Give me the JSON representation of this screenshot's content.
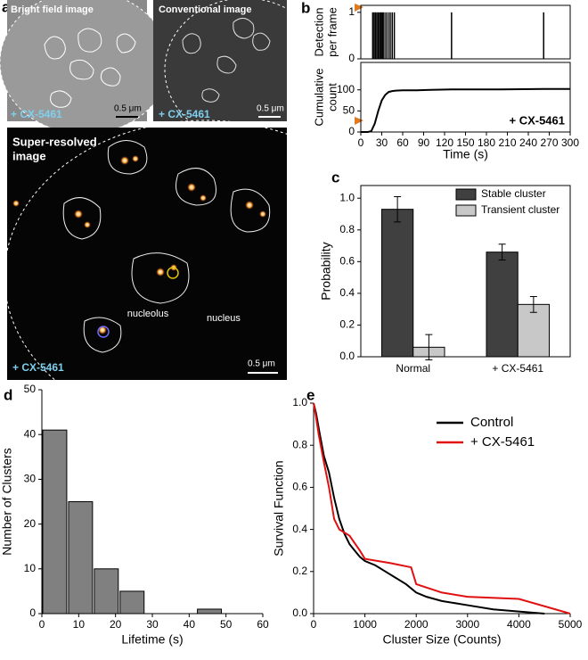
{
  "images": {
    "panel": "a",
    "bright": "Bright field image",
    "conventional": "Conventional image",
    "super": [
      "Super-resolved",
      "image"
    ],
    "treatment": [
      "+ CX-5461",
      "+ CX-5461",
      "+ CX-5461"
    ],
    "scale": [
      "0.5 μm",
      "0.5 μm",
      "0.5 μm"
    ],
    "nucleolus": "nucleolus",
    "nucleus": "nucleus"
  },
  "chart_data": [
    {
      "type": "event",
      "panel": "b",
      "ylabel": [
        "Detection",
        "per frame"
      ],
      "x": [
        17,
        19,
        21,
        23,
        25,
        27,
        29,
        31,
        33,
        36,
        39,
        42,
        45,
        48,
        130,
        262
      ],
      "values": [
        1,
        1,
        1,
        1,
        1,
        1,
        1,
        1,
        1,
        1,
        1,
        1,
        1,
        1,
        1,
        1
      ],
      "color": "#000000",
      "xlim": [
        0,
        300
      ],
      "ylim": [
        0,
        1.15
      ],
      "yticks": [
        0,
        1
      ]
    },
    {
      "type": "line",
      "ylabel": [
        "Cumulative",
        "count"
      ],
      "xlabel": "Time (s)",
      "annotation": "+ CX-5461",
      "x": [
        0,
        10,
        15,
        20,
        25,
        30,
        35,
        40,
        45,
        50,
        60,
        80,
        100,
        130,
        150,
        200,
        262,
        300
      ],
      "values": [
        0,
        0,
        2,
        20,
        50,
        75,
        88,
        95,
        97,
        98,
        99,
        99,
        100,
        101,
        101,
        101,
        102,
        102
      ],
      "color": "#000000",
      "xlim": [
        0,
        300
      ],
      "xticks": [
        0,
        30,
        60,
        90,
        120,
        150,
        180,
        210,
        240,
        270,
        300
      ],
      "ylim": [
        0,
        165
      ],
      "yticks": [
        0,
        50,
        100
      ]
    },
    {
      "type": "bar",
      "panel": "c",
      "ylabel": "Probability",
      "categories": [
        "Normal",
        "+ CX-5461"
      ],
      "series": [
        {
          "name": "Stable cluster",
          "color": "#404040",
          "values": [
            0.93,
            0.66
          ],
          "errors": [
            0.08,
            0.05
          ]
        },
        {
          "name": "Transient cluster",
          "color": "#c8c8c8",
          "values": [
            0.06,
            0.33
          ],
          "errors": [
            0.08,
            0.05
          ]
        }
      ],
      "ylim": [
        0,
        1.08
      ],
      "yticks": [
        {
          "value": 0,
          "label": "0.0"
        },
        {
          "value": 0.2,
          "label": "0.2"
        },
        {
          "value": 0.4,
          "label": "0.4"
        },
        {
          "value": 0.6,
          "label": "0.6"
        },
        {
          "value": 0.8,
          "label": "0.8"
        },
        {
          "value": 1,
          "label": "1.0"
        }
      ],
      "legend": "upper-right"
    },
    {
      "type": "histogram",
      "panel": "d",
      "xlabel": "Lifetime (s)",
      "ylabel": "Number of Clusters",
      "bins": [
        0,
        7,
        14,
        21,
        28,
        35,
        42,
        49
      ],
      "counts": [
        41,
        25,
        10,
        5,
        0,
        0,
        1
      ],
      "color": "#808080",
      "xlim": [
        0,
        60
      ],
      "xticks": [
        0,
        10,
        20,
        30,
        40,
        50,
        60
      ],
      "ylim": [
        0,
        50
      ],
      "yticks": [
        0,
        10,
        20,
        30,
        40,
        50
      ]
    },
    {
      "type": "line",
      "panel": "e",
      "xlabel": "Cluster Size (Counts)",
      "ylabel": "Survival Function",
      "series": [
        {
          "name": "Control",
          "color": "#000000",
          "x": [
            0,
            50,
            100,
            200,
            300,
            400,
            500,
            600,
            700,
            800,
            900,
            1000,
            1200,
            1400,
            1600,
            1800,
            2000,
            2200,
            2500,
            3000,
            3500,
            4000,
            4500
          ],
          "values": [
            1,
            0.95,
            0.88,
            0.75,
            0.67,
            0.55,
            0.45,
            0.38,
            0.33,
            0.3,
            0.27,
            0.25,
            0.23,
            0.2,
            0.17,
            0.14,
            0.1,
            0.08,
            0.06,
            0.04,
            0.02,
            0.01,
            0
          ]
        },
        {
          "name": "+ CX-5461",
          "color": "#e01010",
          "x": [
            0,
            50,
            100,
            200,
            300,
            400,
            500,
            700,
            900,
            1000,
            1500,
            1900,
            2000,
            2500,
            3000,
            4000,
            5000
          ],
          "values": [
            1,
            0.93,
            0.85,
            0.72,
            0.6,
            0.45,
            0.4,
            0.37,
            0.3,
            0.26,
            0.24,
            0.22,
            0.14,
            0.1,
            0.08,
            0.07,
            0
          ]
        }
      ],
      "xlim": [
        0,
        5000
      ],
      "xticks": [
        0,
        1000,
        2000,
        3000,
        4000,
        5000
      ],
      "ylim": [
        0,
        1
      ],
      "yticks": [
        {
          "value": 0,
          "label": "0.0"
        },
        {
          "value": 0.2,
          "label": "0.2"
        },
        {
          "value": 0.4,
          "label": "0.4"
        },
        {
          "value": 0.6,
          "label": "0.6"
        },
        {
          "value": 0.8,
          "label": "0.8"
        },
        {
          "value": 1,
          "label": "1.0"
        }
      ],
      "legend": "upper-right"
    }
  ]
}
